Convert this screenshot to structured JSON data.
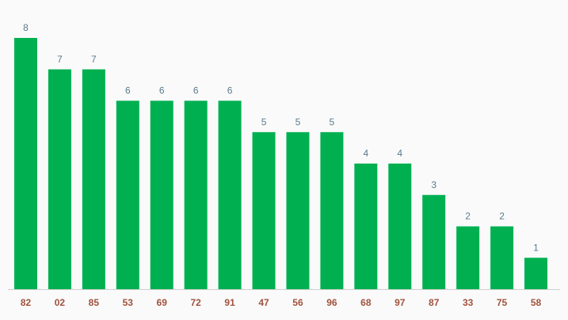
{
  "chart_data": {
    "type": "bar",
    "categories": [
      "82",
      "02",
      "85",
      "53",
      "69",
      "72",
      "91",
      "47",
      "56",
      "96",
      "68",
      "97",
      "87",
      "33",
      "75",
      "58"
    ],
    "values": [
      8,
      7,
      7,
      6,
      6,
      6,
      6,
      5,
      5,
      5,
      4,
      4,
      3,
      2,
      2,
      1
    ],
    "color": "#00b050"
  }
}
